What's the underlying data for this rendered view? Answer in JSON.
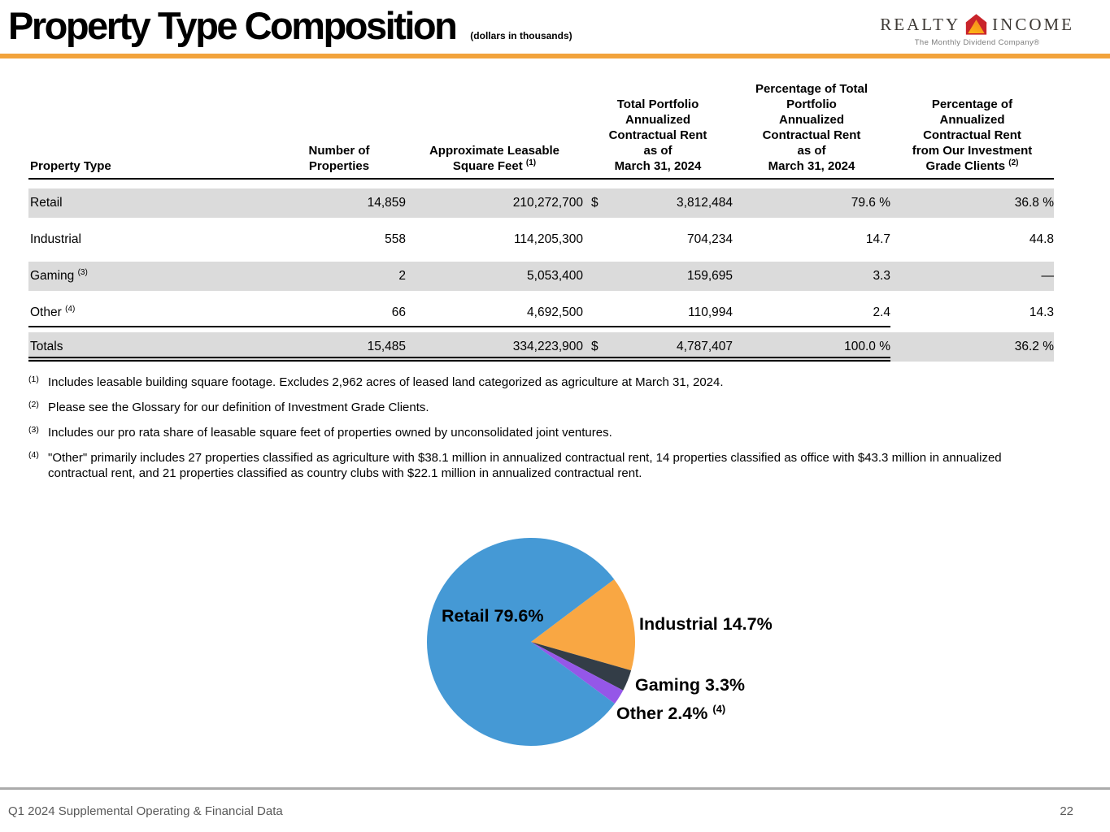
{
  "header": {
    "title": "Property Type Composition",
    "subtitle": "(dollars in thousands)",
    "accent_color": "#F2A33C",
    "logo": {
      "word_left": "REALTY",
      "word_right": "INCOME",
      "tagline": "The Monthly Dividend Company®"
    }
  },
  "table": {
    "columns": [
      {
        "label": "Property Type",
        "sup": ""
      },
      {
        "label": "Number of\nProperties",
        "sup": ""
      },
      {
        "label": "Approximate Leasable\nSquare Feet",
        "sup": "(1)"
      },
      {
        "label": "Total Portfolio\nAnnualized\nContractual Rent\nas of\nMarch 31, 2024",
        "sup": ""
      },
      {
        "label": "Percentage of Total\nPortfolio\nAnnualized\nContractual Rent\nas of\nMarch 31, 2024",
        "sup": ""
      },
      {
        "label": "Percentage of\nAnnualized\nContractual Rent\nfrom Our Investment\nGrade Clients",
        "sup": "(2)"
      }
    ],
    "rows": [
      {
        "type": "Retail",
        "sup": "",
        "properties": "14,859",
        "sqft": "210,272,700",
        "dollar": "$",
        "rent": "3,812,484",
        "pct": "79.6 %",
        "ig": "36.8 %"
      },
      {
        "type": "Industrial",
        "sup": "",
        "properties": "558",
        "sqft": "114,205,300",
        "dollar": "",
        "rent": "704,234",
        "pct": "14.7",
        "ig": "44.8"
      },
      {
        "type": "Gaming",
        "sup": "(3)",
        "properties": "2",
        "sqft": "5,053,400",
        "dollar": "",
        "rent": "159,695",
        "pct": "3.3",
        "ig": "—"
      },
      {
        "type": "Other",
        "sup": "(4)",
        "properties": "66",
        "sqft": "4,692,500",
        "dollar": "",
        "rent": "110,994",
        "pct": "2.4",
        "ig": "14.3"
      }
    ],
    "totals": {
      "type": "Totals",
      "sup": "",
      "properties": "15,485",
      "sqft": "334,223,900",
      "dollar": "$",
      "rent": "4,787,407",
      "pct": "100.0 %",
      "ig": "36.2 %"
    }
  },
  "footnotes": [
    {
      "sup": "(1)",
      "text": "Includes leasable building square footage. Excludes 2,962 acres of leased land categorized as agriculture at March 31, 2024."
    },
    {
      "sup": "(2)",
      "text": "Please see the Glossary for our definition of Investment Grade Clients."
    },
    {
      "sup": "(3)",
      "text": "Includes our pro rata share of leasable square feet of properties owned by unconsolidated joint ventures."
    },
    {
      "sup": "(4)",
      "text": "\"Other\" primarily includes 27 properties classified as agriculture with $38.1 million in annualized contractual rent, 14 properties classified as office with $43.3 million in annualized contractual rent, and 21 properties classified as country clubs with $22.1 million in annualized contractual rent."
    }
  ],
  "chart_data": {
    "type": "pie",
    "title": "",
    "categories": [
      "Retail",
      "Industrial",
      "Gaming",
      "Other"
    ],
    "values": [
      79.6,
      14.7,
      3.3,
      2.4
    ],
    "colors": [
      "#4599D5",
      "#F9A743",
      "#333D47",
      "#9557E8"
    ],
    "start_angle_deg": 37,
    "direction": "clockwise",
    "first_slice": "Industrial",
    "legend_position": "labels-beside-slices",
    "labels": {
      "retail": "Retail 79.6%",
      "industrial": "Industrial 14.7%",
      "gaming": "Gaming 3.3%",
      "other": "Other 2.4%",
      "other_sup": "(4)"
    }
  },
  "footer": {
    "caption": "Q1 2024 Supplemental Operating & Financial Data",
    "page": "22"
  }
}
